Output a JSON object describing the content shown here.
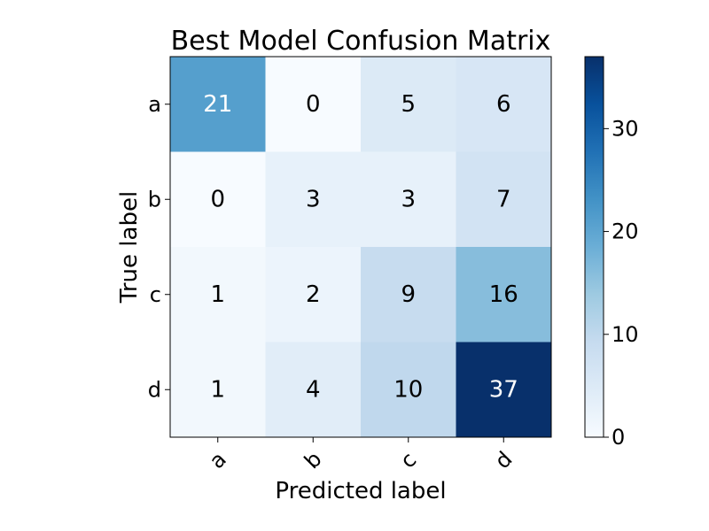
{
  "chart_data": {
    "type": "heatmap",
    "title": "Best Model Confusion Matrix",
    "xlabel": "Predicted label",
    "ylabel": "True label",
    "x_categories": [
      "a",
      "b",
      "c",
      "d"
    ],
    "y_categories": [
      "a",
      "b",
      "c",
      "d"
    ],
    "matrix": [
      [
        21,
        0,
        5,
        6
      ],
      [
        0,
        3,
        3,
        7
      ],
      [
        1,
        2,
        9,
        16
      ],
      [
        1,
        4,
        10,
        37
      ]
    ],
    "colormap": "Blues",
    "color_range": [
      0,
      37
    ],
    "colorbar_ticks": [
      0,
      10,
      20,
      30
    ],
    "colorbar_tick_labels": [
      "0",
      "10",
      "20",
      "30"
    ],
    "colors": {
      "low": "#f7fbff",
      "high": "#08306b",
      "text_dark": "#000000",
      "text_light": "#ffffff"
    },
    "grid": false
  }
}
